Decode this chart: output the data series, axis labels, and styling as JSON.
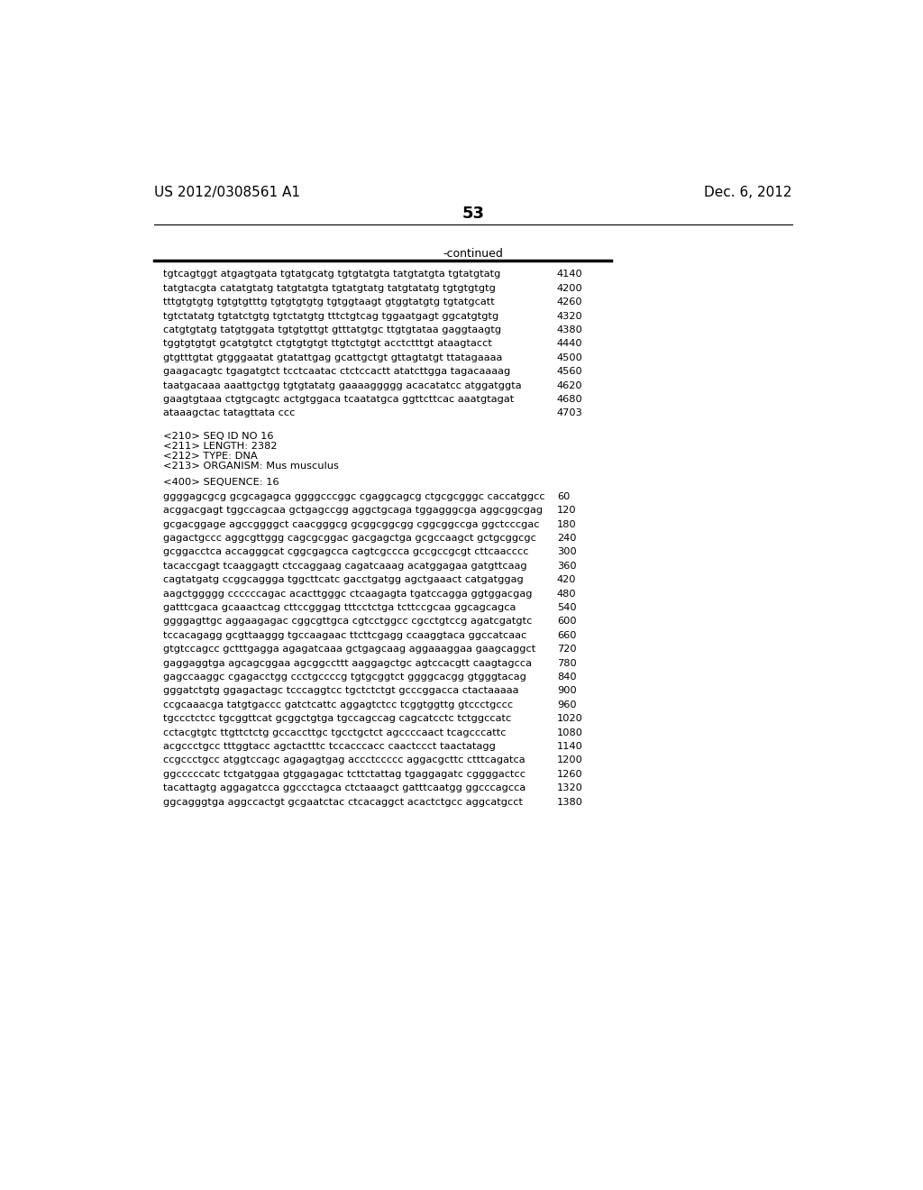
{
  "header_left": "US 2012/0308561 A1",
  "header_right": "Dec. 6, 2012",
  "page_number": "53",
  "continued_label": "-continued",
  "background_color": "#ffffff",
  "text_color": "#000000",
  "sequence_lines_top": [
    [
      "tgtcagtggt atgagtgata tgtatgcatg tgtgtatgta tatgtatgta tgtatgtatg",
      "4140"
    ],
    [
      "tatgtacgta catatgtatg tatgtatgta tgtatgtatg tatgtatatg tgtgtgtgtg",
      "4200"
    ],
    [
      "tttgtgtgtg tgtgtgtttg tgtgtgtgtg tgtggtaagt gtggtatgtg tgtatgcatt",
      "4260"
    ],
    [
      "tgtctatatg tgtatctgtg tgtctatgtg tttctgtcag tggaatgagt ggcatgtgtg",
      "4320"
    ],
    [
      "catgtgtatg tatgtggata tgtgtgttgt gtttatgtgc ttgtgtataa gaggtaagtg",
      "4380"
    ],
    [
      "tggtgtgtgt gcatgtgtct ctgtgtgtgt ttgtctgtgt acctctttgt ataagtacct",
      "4440"
    ],
    [
      "gtgtttgtat gtgggaatat gtatattgag gcattgctgt gttagtatgt ttatagaaaa",
      "4500"
    ],
    [
      "gaagacagtc tgagatgtct tcctcaatac ctctccactt atatcttgga tagacaaaag",
      "4560"
    ],
    [
      "taatgacaaa aaattgctgg tgtgtatatg gaaaaggggg acacatatcc atggatggta",
      "4620"
    ],
    [
      "gaagtgtaaa ctgtgcagtc actgtggaca tcaatatgca ggttcttcac aaatgtagat",
      "4680"
    ],
    [
      "ataaagctac tatagttata ccc",
      "4703"
    ]
  ],
  "metadata_lines": [
    "<210> SEQ ID NO 16",
    "<211> LENGTH: 2382",
    "<212> TYPE: DNA",
    "<213> ORGANISM: Mus musculus"
  ],
  "sequence_label": "<400> SEQUENCE: 16",
  "sequence_lines_bottom": [
    [
      "ggggagcgcg gcgcagagca ggggcccggc cgaggcagcg ctgcgcgggc caccatggcc",
      "60"
    ],
    [
      "acggacgagt tggccagcaa gctgagccgg aggctgcaga tggagggcga aggcggcgag",
      "120"
    ],
    [
      "gcgacggage agccggggct caacgggcg gcggcggcgg cggcggccga ggctcccgac",
      "180"
    ],
    [
      "gagactgccc aggcgttggg cagcgcggac gacgagctga gcgccaagct gctgcggcgc",
      "240"
    ],
    [
      "gcggacctca accagggcat cggcgagcca cagtcgccca gccgccgcgt cttcaacccc",
      "300"
    ],
    [
      "tacaccgagt tcaaggagtt ctccaggaag cagatcaaag acatggagaa gatgttcaag",
      "360"
    ],
    [
      "cagtatgatg ccggcaggga tggcttcatc gacctgatgg agctgaaact catgatggag",
      "420"
    ],
    [
      "aagctggggg ccccccagac acacttgggc ctcaagagta tgatccagga ggtggacgag",
      "480"
    ],
    [
      "gatttcgaca gcaaactcag cttccgggag tttcctctga tcttccgcaa ggcagcagca",
      "540"
    ],
    [
      "ggggagttgc aggaagagac cggcgttgca cgtcctggcc cgcctgtccg agatcgatgtc",
      "600"
    ],
    [
      "tccacagagg gcgttaaggg tgccaagaac ttcttcgagg ccaaggtaca ggccatcaac",
      "660"
    ],
    [
      "gtgtccagcc gctttgagga agagatcaaa gctgagcaag aggaaaggaa gaagcaggct",
      "720"
    ],
    [
      "gaggaggtga agcagcggaa agcggccttt aaggagctgc agtccacgtt caagtagcca",
      "780"
    ],
    [
      "gagccaaggc cgagacctgg ccctgccccg tgtgcggtct ggggcacgg gtgggtacag",
      "840"
    ],
    [
      "gggatctgtg ggagactagc tcccaggtcc tgctctctgt gcccggacca ctactaaaaa",
      "900"
    ],
    [
      "ccgcaaacga tatgtgaccc gatctcattc aggagtctcc tcggtggttg gtccctgccc",
      "960"
    ],
    [
      "tgccctctcc tgcggttcat gcggctgtga tgccagccag cagcatcctc tctggccatc",
      "1020"
    ],
    [
      "cctacgtgtc ttgttctctg gccaccttgc tgcctgctct agccccaact tcagcccattc",
      "1080"
    ],
    [
      "acgccctgcc tttggtacc agctactttc tccacccacc caactccct taactatagg",
      "1140"
    ],
    [
      "ccgccctgcc atggtccagc agagagtgag accctccccc aggacgcttc ctttcagatca",
      "1200"
    ],
    [
      "ggcccccatc tctgatggaa gtggagagac tcttctattag tgaggagatc cggggactcc",
      "1260"
    ],
    [
      "tacattagtg aggagatcca ggccctagca ctctaaagct gatttcaatgg ggcccagcca",
      "1320"
    ],
    [
      "ggcagggtga aggccactgt gcgaatctac ctcacaggct acactctgcc aggcatgcct",
      "1380"
    ]
  ]
}
